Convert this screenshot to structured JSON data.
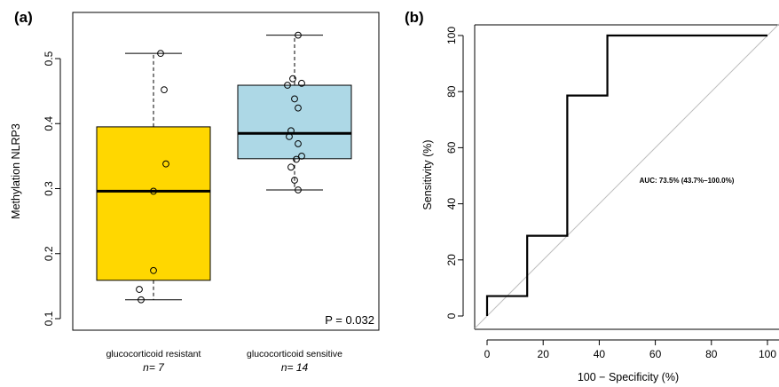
{
  "chart_data": [
    {
      "panel": "(a)",
      "type": "box",
      "ylabel": "Methylation NLRP3",
      "ylim": [
        0.1,
        0.55
      ],
      "yticks": [
        "0.1",
        "0.2",
        "0.3",
        "0.4",
        "0.5"
      ],
      "annotation": "P = 0.032",
      "groups": [
        {
          "label": "glucocorticoid resistant",
          "n_label": "n= 7",
          "color": "#FFD700",
          "whisker_low": 0.129,
          "q1": 0.159,
          "median": 0.296,
          "q3": 0.395,
          "whisker_high": 0.508,
          "points": [
            0.508,
            0.452,
            0.338,
            0.296,
            0.174,
            0.145,
            0.129
          ]
        },
        {
          "label": "glucocorticoid sensitive",
          "n_label": "n= 14",
          "color": "#ADD8E6",
          "whisker_low": 0.298,
          "q1": 0.346,
          "median": 0.385,
          "q3": 0.459,
          "whisker_high": 0.536,
          "points": [
            0.536,
            0.469,
            0.462,
            0.459,
            0.438,
            0.424,
            0.389,
            0.38,
            0.369,
            0.35,
            0.345,
            0.333,
            0.313,
            0.298
          ]
        }
      ]
    },
    {
      "panel": "(b)",
      "type": "line",
      "xlabel": "100 − Specificity (%)",
      "ylabel": "Sensitivity (%)",
      "xlim": [
        0,
        100
      ],
      "ylim": [
        0,
        100
      ],
      "xticks": [
        "0",
        "20",
        "40",
        "60",
        "80",
        "100"
      ],
      "yticks": [
        "0",
        "20",
        "40",
        "60",
        "80",
        "100"
      ],
      "annotation": "AUC: 73.5% (43.7%–100.0%)",
      "roc_x": [
        0,
        0,
        14.3,
        14.3,
        28.6,
        28.6,
        42.9,
        42.9,
        100
      ],
      "roc_y": [
        0,
        7.1,
        7.1,
        28.6,
        28.6,
        78.6,
        78.6,
        100,
        100
      ],
      "diagonal_color": "#BEBEBE"
    }
  ]
}
